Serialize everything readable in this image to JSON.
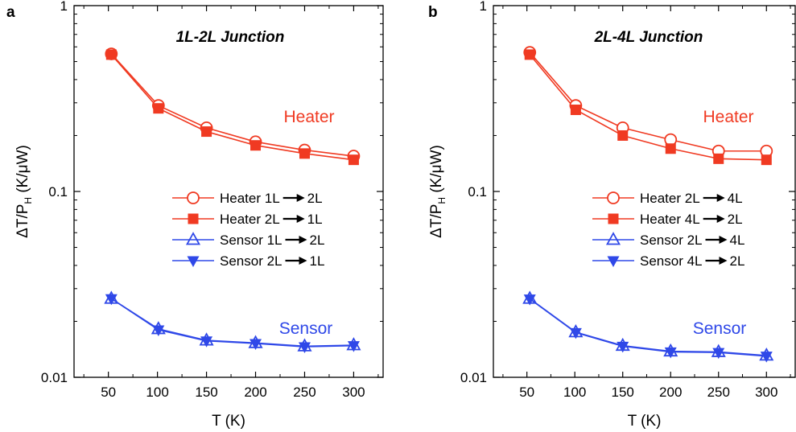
{
  "chart_data": [
    {
      "type": "line",
      "panel": "a",
      "title": "1L-2L Junction",
      "xlabel": "T (K)",
      "ylabel": "ΔT/P",
      "ylabel_sub": "H",
      "ylabel_unit": " (K/μW)",
      "yscale": "log",
      "xlim": [
        15,
        330
      ],
      "ylim": [
        0.01,
        1
      ],
      "xticks": [
        50,
        100,
        150,
        200,
        250,
        300
      ],
      "yticks": [
        {
          "value": 0.01,
          "label": "0.01"
        },
        {
          "value": 0.1,
          "label": "0.1"
        },
        {
          "value": 1,
          "label": "1"
        }
      ],
      "legend_position": "middle-right",
      "group_labels": [
        {
          "text": "Heater",
          "color": "#f03a22"
        },
        {
          "text": "Sensor",
          "color": "#2f48e8"
        }
      ],
      "x": [
        53,
        101,
        150,
        200,
        250,
        300
      ],
      "series": [
        {
          "name": "Heater  1L",
          "to": "2L",
          "marker": "circle-open",
          "color": "#f03a22",
          "values": [
            0.55,
            0.29,
            0.22,
            0.185,
            0.167,
            0.155
          ]
        },
        {
          "name": "Heater  2L",
          "to": "1L",
          "marker": "square-filled",
          "color": "#f03a22",
          "values": [
            0.545,
            0.28,
            0.21,
            0.177,
            0.16,
            0.148
          ]
        },
        {
          "name": "Sensor 1L",
          "to": "2L",
          "marker": "triangle-up-open",
          "color": "#2f48e8",
          "values": [
            0.0265,
            0.0182,
            0.0158,
            0.0153,
            0.0147,
            0.0149
          ]
        },
        {
          "name": "Sensor 2L",
          "to": "1L",
          "marker": "triangle-down-filled",
          "color": "#2f48e8",
          "values": [
            0.0265,
            0.018,
            0.0157,
            0.0152,
            0.0146,
            0.0148
          ]
        }
      ]
    },
    {
      "type": "line",
      "panel": "b",
      "title": "2L-4L Junction",
      "xlabel": "T (K)",
      "ylabel": "ΔT/P",
      "ylabel_sub": "H",
      "ylabel_unit": " (K/μW)",
      "yscale": "log",
      "xlim": [
        15,
        330
      ],
      "ylim": [
        0.01,
        1
      ],
      "xticks": [
        50,
        100,
        150,
        200,
        250,
        300
      ],
      "yticks": [
        {
          "value": 0.01,
          "label": "0.01"
        },
        {
          "value": 0.1,
          "label": "0.1"
        },
        {
          "value": 1,
          "label": "1"
        }
      ],
      "legend_position": "middle-right",
      "group_labels": [
        {
          "text": "Heater",
          "color": "#f03a22"
        },
        {
          "text": "Sensor",
          "color": "#2f48e8"
        }
      ],
      "x": [
        53,
        101,
        150,
        200,
        250,
        300
      ],
      "series": [
        {
          "name": "Heater 2L",
          "to": "4L",
          "marker": "circle-open",
          "color": "#f03a22",
          "values": [
            0.56,
            0.29,
            0.22,
            0.19,
            0.165,
            0.165
          ]
        },
        {
          "name": "Heater 4L",
          "to": "2L",
          "marker": "square-filled",
          "color": "#f03a22",
          "values": [
            0.545,
            0.275,
            0.2,
            0.17,
            0.15,
            0.148
          ]
        },
        {
          "name": "Sensor 2L",
          "to": "4L",
          "marker": "triangle-up-open",
          "color": "#2f48e8",
          "values": [
            0.0265,
            0.0175,
            0.0148,
            0.0138,
            0.0137,
            0.0131
          ]
        },
        {
          "name": "Sensor 4L",
          "to": "2L",
          "marker": "triangle-down-filled",
          "color": "#2f48e8",
          "values": [
            0.0264,
            0.0174,
            0.0147,
            0.0137,
            0.0136,
            0.013
          ]
        }
      ]
    }
  ]
}
